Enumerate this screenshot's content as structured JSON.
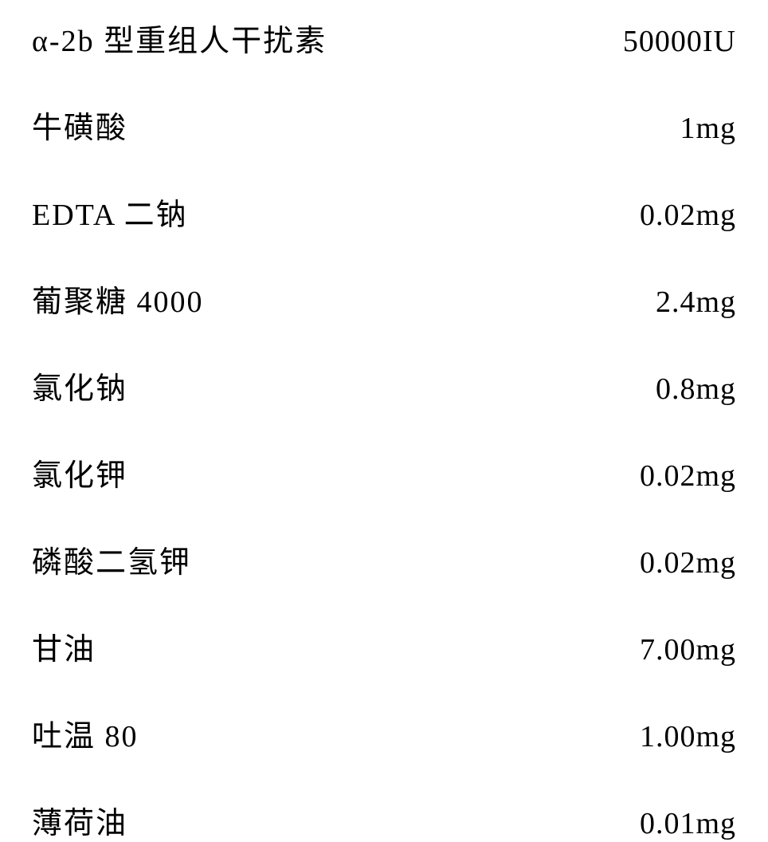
{
  "ingredients": [
    {
      "name": "α-2b 型重组人干扰素",
      "amount": "50000IU"
    },
    {
      "name": "牛磺酸",
      "amount": "1mg"
    },
    {
      "name": "EDTA 二钠",
      "amount": "0.02mg"
    },
    {
      "name": "葡聚糖 4000",
      "amount": "2.4mg"
    },
    {
      "name": "氯化钠",
      "amount": "0.8mg"
    },
    {
      "name": "氯化钾",
      "amount": "0.02mg"
    },
    {
      "name": "磷酸二氢钾",
      "amount": "0.02mg"
    },
    {
      "name": "甘油",
      "amount": "7.00mg"
    },
    {
      "name": "吐温 80",
      "amount": "1.00mg"
    },
    {
      "name": "薄荷油",
      "amount": "0.01mg"
    }
  ],
  "styling": {
    "font_size": 38,
    "text_color": "#000000",
    "background_color": "#ffffff",
    "row_gap": 54,
    "font_family": "SimSun"
  }
}
